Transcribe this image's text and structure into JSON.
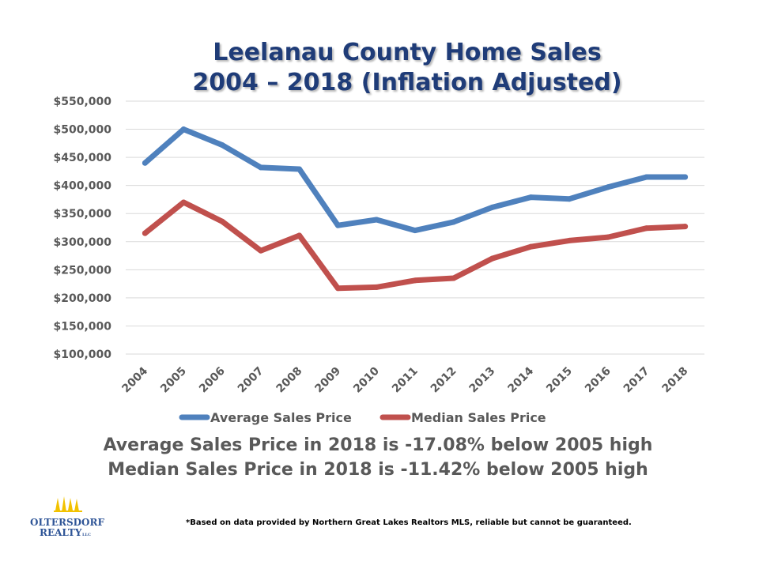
{
  "title": {
    "line1": "Leelanau County Home Sales",
    "line2": "2004 – 2018 (Inflation Adjusted)"
  },
  "chart_data": {
    "type": "line",
    "title": "Leelanau County Home Sales 2004 – 2018 (Inflation Adjusted)",
    "categories": [
      "2004",
      "2005",
      "2006",
      "2007",
      "2008",
      "2009",
      "2010",
      "2011",
      "2012",
      "2013",
      "2014",
      "2015",
      "2016",
      "2017",
      "2018"
    ],
    "yticks": [
      "$100,000",
      "$150,000",
      "$200,000",
      "$250,000",
      "$300,000",
      "$350,000",
      "$400,000",
      "$450,000",
      "$500,000",
      "$550,000"
    ],
    "ylim": [
      100000,
      550000
    ],
    "grid": true,
    "legend_position": "bottom",
    "series": [
      {
        "name": "Average Sales Price",
        "color": "#4f81bd",
        "values": [
          440000,
          500000,
          472000,
          432000,
          429000,
          329000,
          339000,
          320000,
          335000,
          361000,
          379000,
          376000,
          397000,
          415000,
          415000
        ]
      },
      {
        "name": "Median Sales Price",
        "color": "#c0504d",
        "values": [
          315000,
          370000,
          336000,
          284000,
          311000,
          217000,
          219000,
          231000,
          235000,
          270000,
          291000,
          302000,
          308000,
          324000,
          327000
        ]
      }
    ]
  },
  "summary": {
    "line1": "Average Sales Price in 2018 is -17.08% below 2005 high",
    "line2": "Median Sales Price in 2018 is -11.42% below 2005 high"
  },
  "logo": {
    "name_line1": "OLTERSDORF",
    "name_line2": "REALTY",
    "suffix": "LLC"
  },
  "footnote": "*Based on data provided by Northern Great Lakes Realtors MLS, reliable but cannot be guaranteed.",
  "colors": {
    "title": "#1f3c78",
    "summary_text": "#595959",
    "logo_text": "#2f5597",
    "logo_trees": "#f2c200"
  }
}
